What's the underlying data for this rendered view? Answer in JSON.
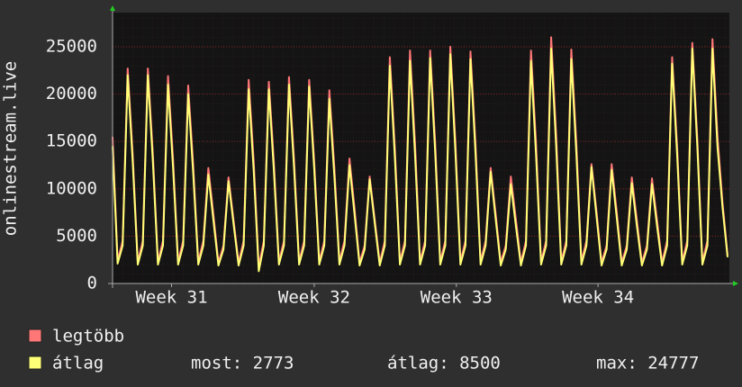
{
  "chart_data": {
    "type": "line",
    "ylabel": "onlinestream.live",
    "ylim": [
      0,
      28600
    ],
    "yticks": [
      0,
      5000,
      10000,
      15000,
      20000,
      25000
    ],
    "xlim": [
      0,
      122
    ],
    "xticks": [
      {
        "value": 11.7,
        "label": "Week 31"
      },
      {
        "value": 40,
        "label": "Week 32"
      },
      {
        "value": 68.2,
        "label": "Week 33"
      },
      {
        "value": 96.3,
        "label": "Week 34"
      }
    ],
    "grid": true,
    "series": [
      {
        "name": "legtöbb",
        "color": "#ff7777",
        "values": [
          15500,
          2400,
          4500,
          22700,
          13600,
          2300,
          4500,
          22700,
          13600,
          2300,
          4500,
          21900,
          13100,
          2300,
          4500,
          20900,
          12500,
          2300,
          4500,
          12200,
          7300,
          2200,
          4000,
          11200,
          6700,
          2200,
          4500,
          21500,
          12900,
          1800,
          4500,
          21300,
          12800,
          2300,
          4500,
          21800,
          13100,
          2300,
          4500,
          21500,
          12900,
          2300,
          4500,
          20400,
          12200,
          2300,
          4500,
          13200,
          7900,
          2200,
          4000,
          11300,
          6800,
          2200,
          4500,
          23900,
          14300,
          2300,
          4500,
          24600,
          14800,
          2300,
          4500,
          24600,
          14800,
          2300,
          4500,
          25000,
          15000,
          2300,
          4500,
          24500,
          14700,
          2300,
          4500,
          12200,
          7300,
          2200,
          4000,
          11300,
          6800,
          2200,
          4500,
          24600,
          14800,
          2300,
          4500,
          26000,
          15600,
          2300,
          4500,
          24700,
          14800,
          2300,
          4500,
          12600,
          7600,
          2200,
          4000,
          12600,
          7600,
          2200,
          4000,
          11200,
          6700,
          2200,
          4000,
          11100,
          6700,
          2200,
          4500,
          23900,
          14300,
          2300,
          4500,
          25400,
          15200,
          2300,
          4500,
          25800,
          15500,
          8500,
          3000
        ]
      },
      {
        "name": "átlag",
        "color": "#ffff77",
        "values": [
          14500,
          2100,
          4000,
          22000,
          12800,
          2000,
          4000,
          22000,
          12800,
          2000,
          4000,
          21000,
          12200,
          2000,
          4000,
          20000,
          11600,
          2000,
          4000,
          11500,
          6700,
          1900,
          3600,
          10800,
          6300,
          1900,
          4000,
          20500,
          11900,
          1300,
          4000,
          20500,
          11900,
          2000,
          4000,
          21000,
          12200,
          2000,
          4000,
          20800,
          12100,
          2000,
          4000,
          19500,
          11300,
          2000,
          4000,
          12500,
          7300,
          1900,
          3600,
          11000,
          6400,
          1900,
          4000,
          23000,
          13300,
          2000,
          4000,
          23500,
          13600,
          2000,
          4000,
          23800,
          13800,
          2000,
          4000,
          24200,
          14000,
          2000,
          4000,
          23700,
          13700,
          2000,
          4000,
          11800,
          6800,
          1900,
          3600,
          10500,
          6100,
          1900,
          4000,
          23500,
          13600,
          2000,
          4000,
          24800,
          14400,
          2000,
          4000,
          23700,
          13700,
          2000,
          4000,
          12300,
          7100,
          1900,
          3600,
          12000,
          7000,
          1900,
          3600,
          10600,
          6100,
          1900,
          3600,
          10500,
          6100,
          1900,
          4000,
          23200,
          13500,
          2000,
          4000,
          24800,
          14400,
          2000,
          4000,
          24800,
          14400,
          8000,
          2773
        ]
      }
    ],
    "stats": [
      "most: 2773",
      "átlag: 8500",
      "max: 24777"
    ]
  }
}
